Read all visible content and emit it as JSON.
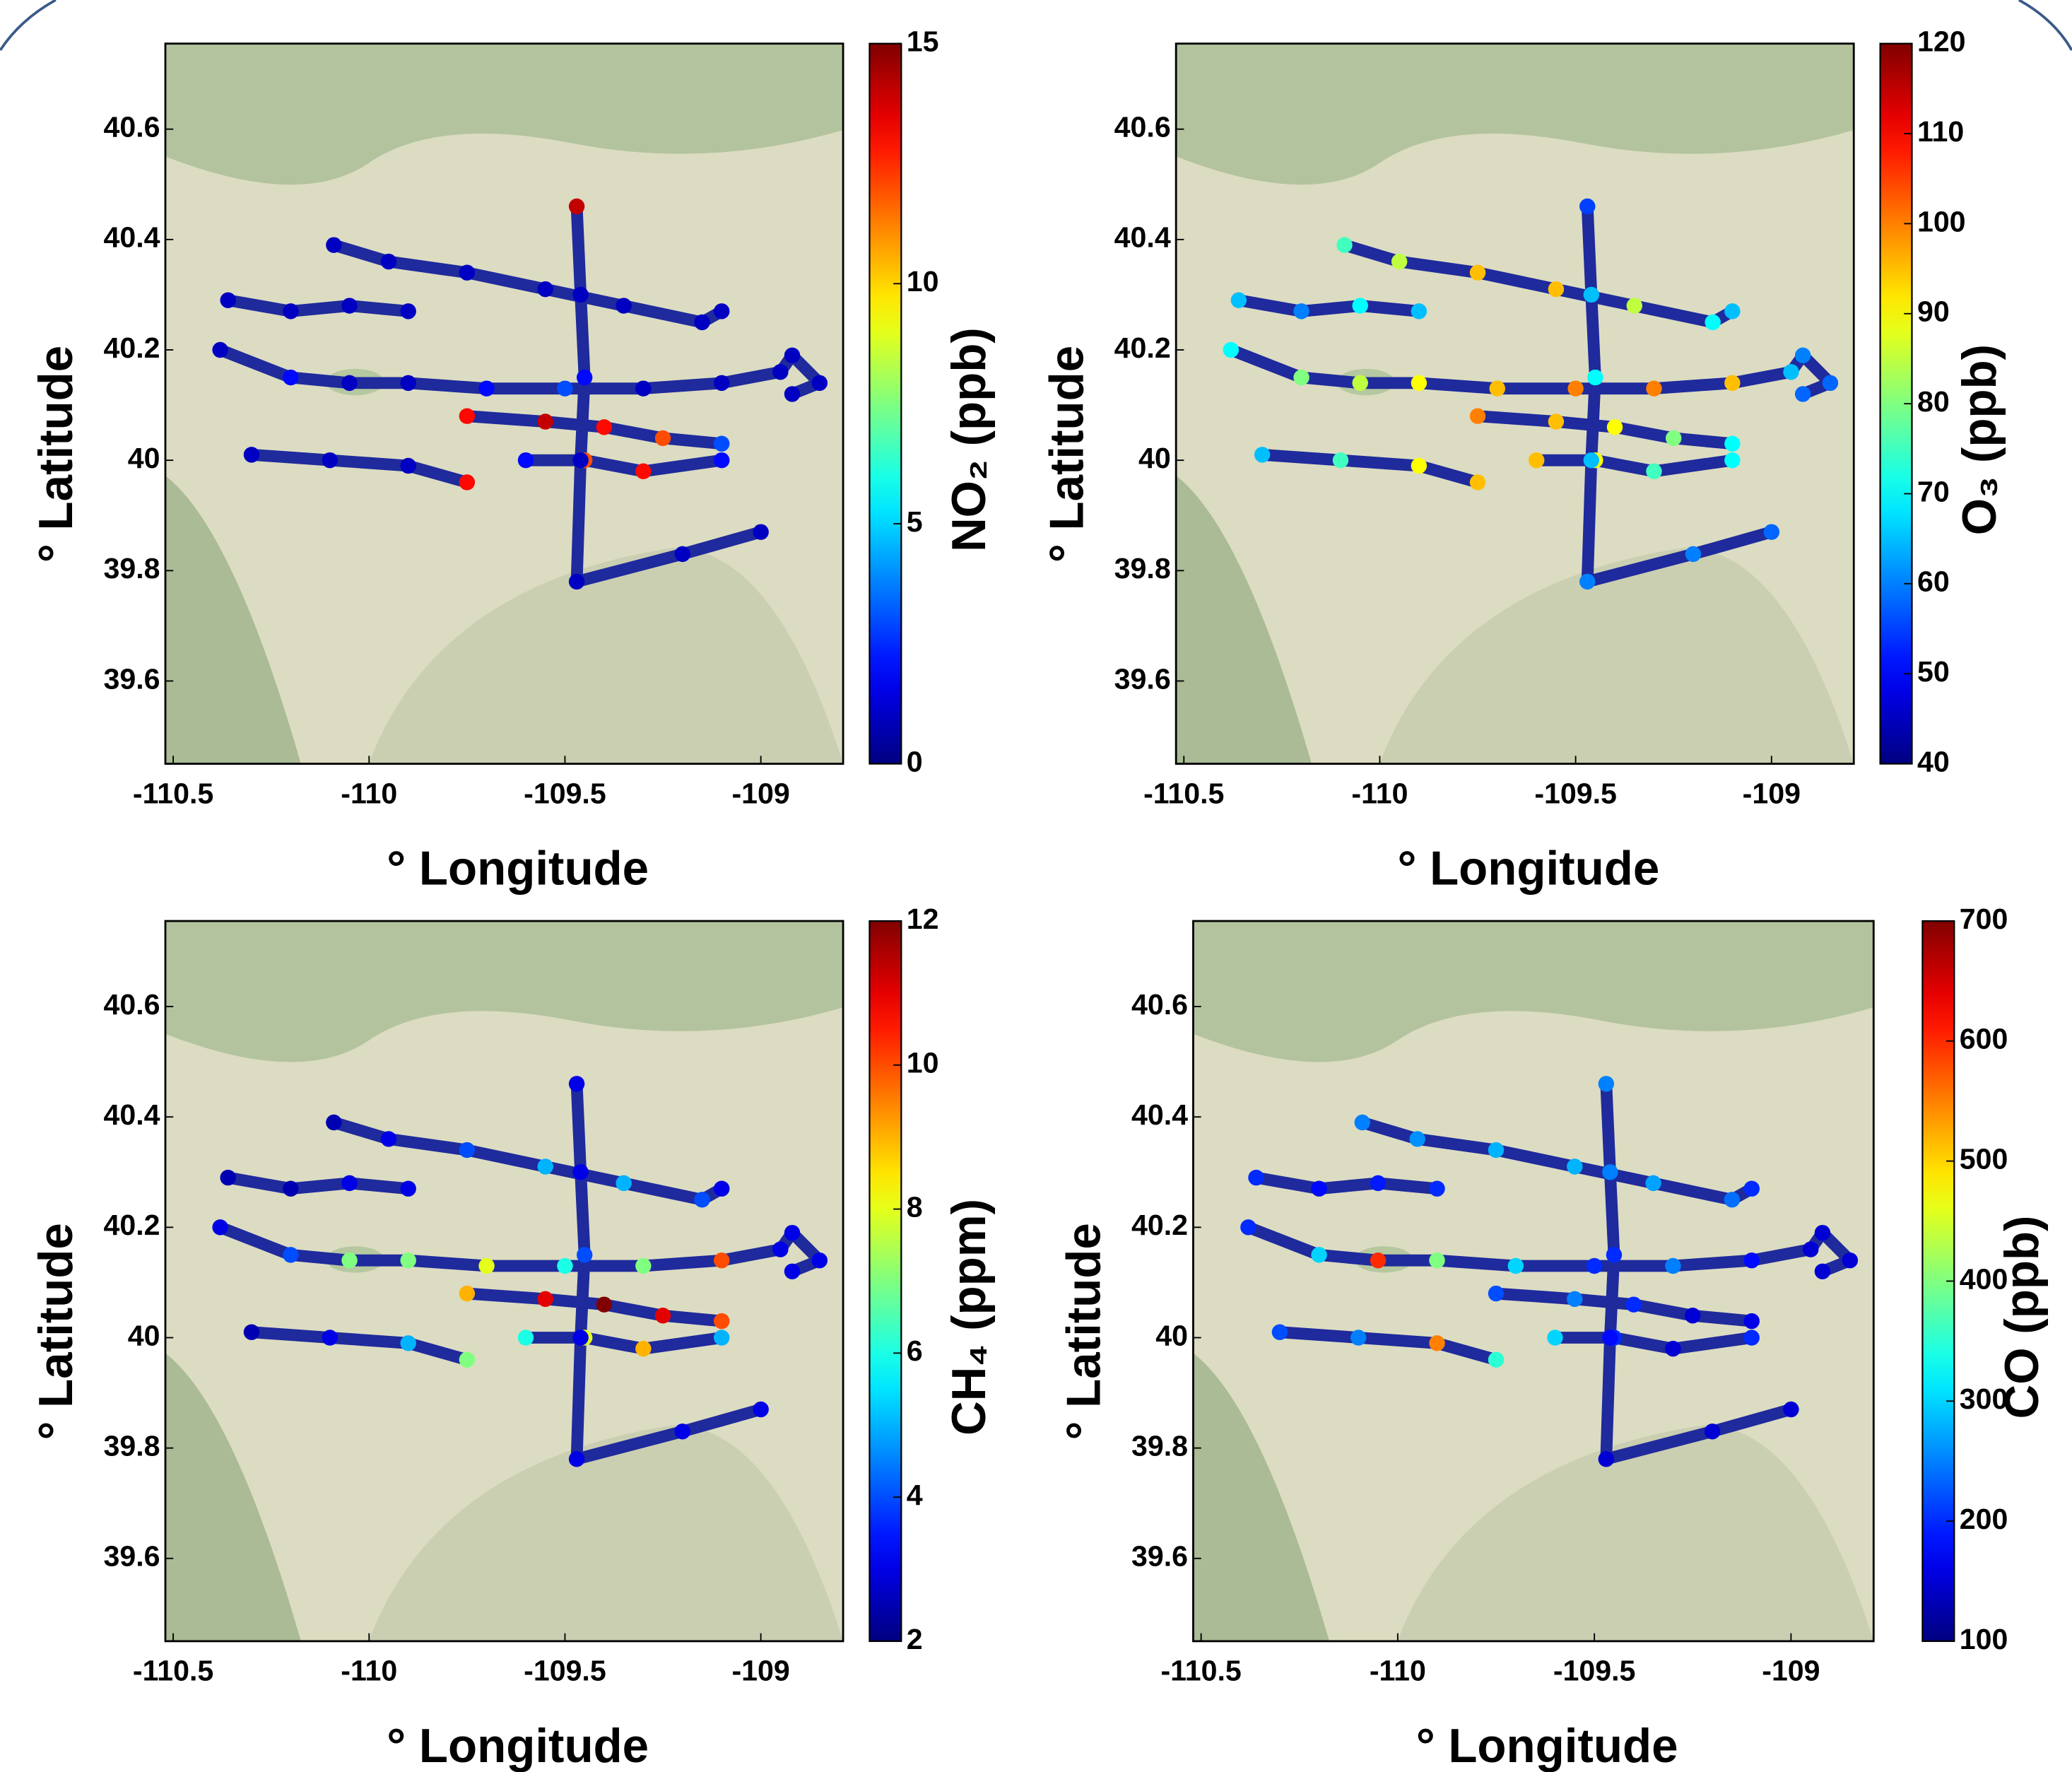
{
  "chart_data": [
    {
      "type": "scatter",
      "colormap": "jet",
      "xlabel": "° Longitude",
      "ylabel": "° Latitude",
      "colorbar_label": "NO₂ (ppb)",
      "xlim": [
        -110.52,
        -108.79
      ],
      "ylim": [
        39.45,
        40.755
      ],
      "xticks": [
        -110.5,
        -110,
        -109.5,
        -109
      ],
      "yticks": [
        39.6,
        39.8,
        40,
        40.2,
        40.4,
        40.6
      ],
      "clim": [
        0,
        15
      ],
      "cticks": [
        0,
        5,
        10,
        15
      ],
      "x": [
        -110.36,
        -110.2,
        -110.05,
        -109.9,
        null,
        -110.09,
        -109.95,
        -109.75,
        -109.55,
        -109.35,
        -109.15,
        -109.1,
        null,
        -110.38,
        -110.2,
        -110.05,
        -109.9,
        -109.7,
        -109.5,
        -109.3,
        -109.1,
        -108.95,
        -108.92,
        -108.85,
        -108.92,
        null,
        -109.75,
        -109.55,
        -109.4,
        -109.25,
        -109.1,
        null,
        -110.3,
        -110.1,
        -109.9,
        -109.75,
        null,
        -109.6,
        -109.45,
        -109.3,
        -109.1,
        null,
        -109.47,
        -109.46,
        -109.45,
        -109.46,
        -109.47,
        -109.2,
        -109.0
      ],
      "y": [
        40.29,
        40.27,
        40.28,
        40.27,
        null,
        40.39,
        40.36,
        40.34,
        40.31,
        40.28,
        40.25,
        40.27,
        null,
        40.2,
        40.15,
        40.14,
        40.14,
        40.13,
        40.13,
        40.13,
        40.14,
        40.16,
        40.19,
        40.14,
        40.12,
        null,
        40.08,
        40.07,
        40.06,
        40.04,
        40.03,
        null,
        40.01,
        40,
        39.99,
        39.96,
        null,
        40,
        40,
        39.98,
        40,
        null,
        40.46,
        40.3,
        40.15,
        40,
        39.78,
        39.83,
        39.87
      ],
      "values": [
        1,
        1,
        1,
        1,
        null,
        1,
        1,
        1,
        1,
        1,
        1,
        1,
        null,
        1,
        2,
        1,
        1,
        2,
        3,
        1,
        1,
        1,
        1,
        1,
        1,
        null,
        13,
        14,
        13,
        12,
        3,
        null,
        1,
        1,
        1,
        13,
        null,
        2,
        12,
        13,
        2,
        null,
        14,
        1,
        2,
        1,
        1,
        1,
        1
      ]
    },
    {
      "type": "scatter",
      "colormap": "jet",
      "xlabel": "° Longitude",
      "ylabel": "° Latitude",
      "colorbar_label": "O₃ (ppb)",
      "xlim": [
        -110.52,
        -108.79
      ],
      "ylim": [
        39.45,
        40.755
      ],
      "xticks": [
        -110.5,
        -110,
        -109.5,
        -109
      ],
      "yticks": [
        39.6,
        39.8,
        40,
        40.2,
        40.4,
        40.6
      ],
      "clim": [
        40,
        120
      ],
      "cticks": [
        40,
        50,
        60,
        70,
        80,
        90,
        100,
        110,
        120
      ],
      "x": [
        -110.36,
        -110.2,
        -110.05,
        -109.9,
        null,
        -110.09,
        -109.95,
        -109.75,
        -109.55,
        -109.35,
        -109.15,
        -109.1,
        null,
        -110.38,
        -110.2,
        -110.05,
        -109.9,
        -109.7,
        -109.5,
        -109.3,
        -109.1,
        -108.95,
        -108.92,
        -108.85,
        -108.92,
        null,
        -109.75,
        -109.55,
        -109.4,
        -109.25,
        -109.1,
        null,
        -110.3,
        -110.1,
        -109.9,
        -109.75,
        null,
        -109.6,
        -109.45,
        -109.3,
        -109.1,
        null,
        -109.47,
        -109.46,
        -109.45,
        -109.46,
        -109.47,
        -109.2,
        -109.0
      ],
      "y": [
        40.29,
        40.27,
        40.28,
        40.27,
        null,
        40.39,
        40.36,
        40.34,
        40.31,
        40.28,
        40.25,
        40.27,
        null,
        40.2,
        40.15,
        40.14,
        40.14,
        40.13,
        40.13,
        40.13,
        40.14,
        40.16,
        40.19,
        40.14,
        40.12,
        null,
        40.08,
        40.07,
        40.06,
        40.04,
        40.03,
        null,
        40.01,
        40,
        39.99,
        39.96,
        null,
        40,
        40,
        39.98,
        40,
        null,
        40.46,
        40.3,
        40.15,
        40,
        39.78,
        39.83,
        39.87
      ],
      "values": [
        65,
        60,
        70,
        65,
        null,
        75,
        85,
        95,
        95,
        85,
        70,
        65,
        null,
        70,
        80,
        85,
        90,
        95,
        100,
        100,
        95,
        65,
        60,
        58,
        58,
        null,
        100,
        95,
        90,
        80,
        70,
        null,
        65,
        75,
        90,
        95,
        null,
        95,
        90,
        75,
        70,
        null,
        55,
        65,
        70,
        65,
        60,
        60,
        58
      ]
    },
    {
      "type": "scatter",
      "colormap": "jet",
      "xlabel": "° Longitude",
      "ylabel": "° Latitude",
      "colorbar_label": "CH₄ (ppm)",
      "xlim": [
        -110.52,
        -108.79
      ],
      "ylim": [
        39.45,
        40.755
      ],
      "xticks": [
        -110.5,
        -110,
        -109.5,
        -109
      ],
      "yticks": [
        39.6,
        39.8,
        40,
        40.2,
        40.4,
        40.6
      ],
      "clim": [
        2,
        12
      ],
      "cticks": [
        2,
        4,
        6,
        8,
        10,
        12
      ],
      "x": [
        -110.36,
        -110.2,
        -110.05,
        -109.9,
        null,
        -110.09,
        -109.95,
        -109.75,
        -109.55,
        -109.35,
        -109.15,
        -109.1,
        null,
        -110.38,
        -110.2,
        -110.05,
        -109.9,
        -109.7,
        -109.5,
        -109.3,
        -109.1,
        -108.95,
        -108.92,
        -108.85,
        -108.92,
        null,
        -109.75,
        -109.55,
        -109.4,
        -109.25,
        -109.1,
        null,
        -110.3,
        -110.1,
        -109.9,
        -109.75,
        null,
        -109.6,
        -109.45,
        -109.3,
        -109.1,
        null,
        -109.47,
        -109.46,
        -109.45,
        -109.46,
        -109.47,
        -109.2,
        -109.0
      ],
      "y": [
        40.29,
        40.27,
        40.28,
        40.27,
        null,
        40.39,
        40.36,
        40.34,
        40.31,
        40.28,
        40.25,
        40.27,
        null,
        40.2,
        40.15,
        40.14,
        40.14,
        40.13,
        40.13,
        40.13,
        40.14,
        40.16,
        40.19,
        40.14,
        40.12,
        null,
        40.08,
        40.07,
        40.06,
        40.04,
        40.03,
        null,
        40.01,
        40,
        39.99,
        39.96,
        null,
        40,
        40,
        39.98,
        40,
        null,
        40.46,
        40.3,
        40.15,
        40,
        39.78,
        39.83,
        39.87
      ],
      "values": [
        2.5,
        2.5,
        3,
        3,
        null,
        2.5,
        3,
        4,
        5,
        5,
        4,
        3,
        null,
        3,
        4,
        7,
        7,
        8,
        6,
        7,
        10,
        3,
        3,
        3,
        3,
        null,
        9,
        11,
        12,
        11,
        10,
        null,
        2.5,
        3,
        5,
        7,
        null,
        6,
        8,
        9,
        5,
        null,
        3,
        3,
        4,
        3,
        3,
        3,
        3
      ]
    },
    {
      "type": "scatter",
      "colormap": "jet",
      "xlabel": "° Longitude",
      "ylabel": "° Latitude",
      "colorbar_label": "CO (ppb)",
      "xlim": [
        -110.52,
        -108.79
      ],
      "ylim": [
        39.45,
        40.755
      ],
      "xticks": [
        -110.5,
        -110,
        -109.5,
        -109
      ],
      "yticks": [
        39.6,
        39.8,
        40,
        40.2,
        40.4,
        40.6
      ],
      "clim": [
        100,
        700
      ],
      "cticks": [
        100,
        200,
        300,
        400,
        500,
        600,
        700
      ],
      "x": [
        -110.36,
        -110.2,
        -110.05,
        -109.9,
        null,
        -110.09,
        -109.95,
        -109.75,
        -109.55,
        -109.35,
        -109.15,
        -109.1,
        null,
        -110.38,
        -110.2,
        -110.05,
        -109.9,
        -109.7,
        -109.5,
        -109.3,
        -109.1,
        -108.95,
        -108.92,
        -108.85,
        -108.92,
        null,
        -109.75,
        -109.55,
        -109.4,
        -109.25,
        -109.1,
        null,
        -110.3,
        -110.1,
        -109.9,
        -109.75,
        null,
        -109.6,
        -109.45,
        -109.3,
        -109.1,
        null,
        -109.47,
        -109.46,
        -109.45,
        -109.46,
        -109.47,
        -109.2,
        -109.0
      ],
      "y": [
        40.29,
        40.27,
        40.28,
        40.27,
        null,
        40.39,
        40.36,
        40.34,
        40.31,
        40.28,
        40.25,
        40.27,
        null,
        40.2,
        40.15,
        40.14,
        40.14,
        40.13,
        40.13,
        40.13,
        40.14,
        40.16,
        40.19,
        40.14,
        40.12,
        null,
        40.08,
        40.07,
        40.06,
        40.04,
        40.03,
        null,
        40.01,
        40,
        39.99,
        39.96,
        null,
        40,
        40,
        39.98,
        40,
        null,
        40.46,
        40.3,
        40.15,
        40,
        39.78,
        39.83,
        39.87
      ],
      "values": [
        200,
        180,
        190,
        200,
        null,
        250,
        260,
        280,
        280,
        270,
        240,
        200,
        null,
        200,
        300,
        600,
        400,
        300,
        200,
        250,
        180,
        150,
        150,
        150,
        150,
        null,
        220,
        250,
        200,
        150,
        160,
        null,
        220,
        250,
        550,
        350,
        null,
        300,
        200,
        150,
        200,
        null,
        250,
        250,
        200,
        180,
        150,
        150,
        150
      ]
    }
  ]
}
